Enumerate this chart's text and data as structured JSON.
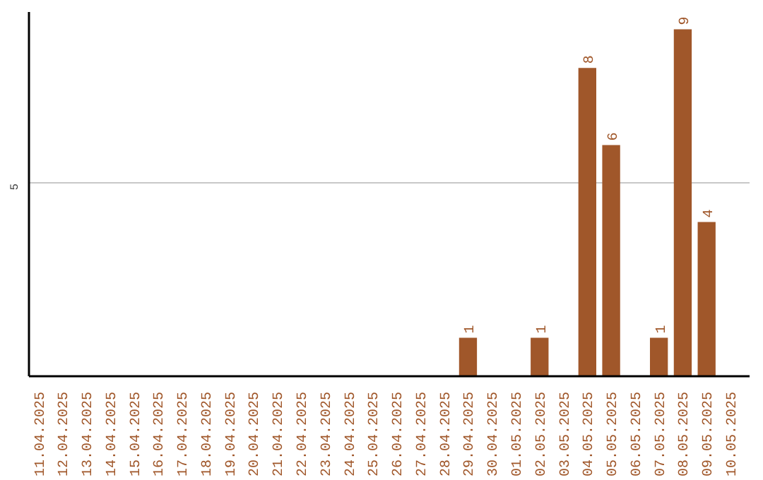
{
  "chart_data": {
    "type": "bar",
    "categories": [
      "11.04.2025",
      "12.04.2025",
      "13.04.2025",
      "14.04.2025",
      "15.04.2025",
      "16.04.2025",
      "17.04.2025",
      "18.04.2025",
      "19.04.2025",
      "20.04.2025",
      "21.04.2025",
      "22.04.2025",
      "23.04.2025",
      "24.04.2025",
      "25.04.2025",
      "26.04.2025",
      "27.04.2025",
      "28.04.2025",
      "29.04.2025",
      "30.04.2025",
      "01.05.2025",
      "02.05.2025",
      "03.05.2025",
      "04.05.2025",
      "05.05.2025",
      "06.05.2025",
      "07.05.2025",
      "08.05.2025",
      "09.05.2025",
      "10.05.2025"
    ],
    "values": [
      null,
      null,
      null,
      null,
      null,
      null,
      null,
      null,
      null,
      null,
      null,
      null,
      null,
      null,
      null,
      null,
      null,
      null,
      1,
      null,
      null,
      1,
      null,
      8,
      6,
      null,
      1,
      9,
      4,
      null
    ],
    "color": "#a0572a",
    "ylim": [
      0,
      9.45
    ],
    "yticks": [
      5
    ],
    "grid": "y",
    "data_labels": true
  }
}
